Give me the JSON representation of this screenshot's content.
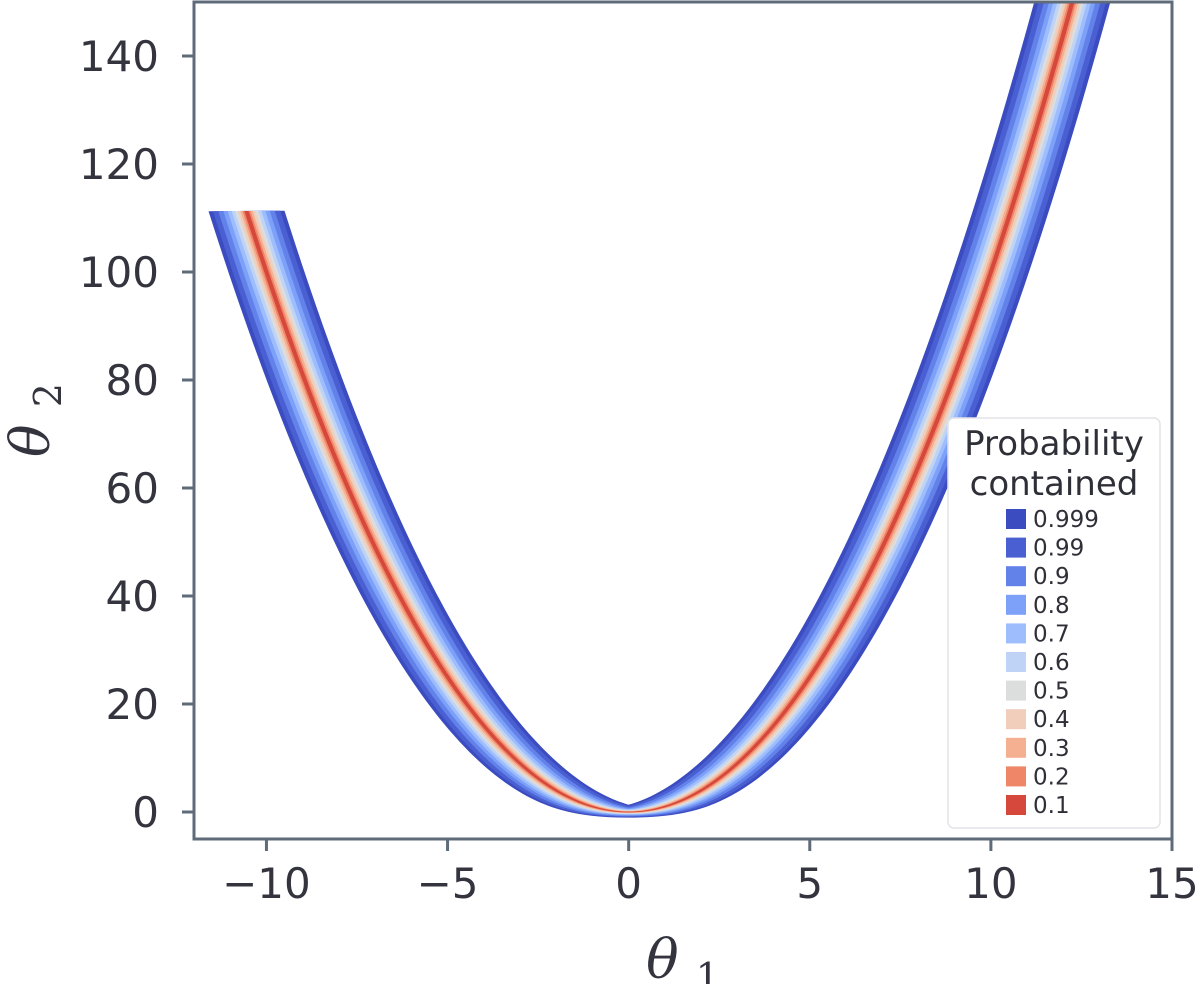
{
  "chart_data": {
    "type": "area",
    "x_axis": {
      "min": -12,
      "max": 15,
      "ticks": [
        -10,
        -5,
        0,
        5,
        10,
        15
      ],
      "tick_labels": [
        "−10",
        "−5",
        "0",
        "5",
        "10",
        "15"
      ],
      "label_main": "θ",
      "label_sub": "1"
    },
    "y_axis": {
      "min": -5,
      "max": 150,
      "ticks": [
        0,
        20,
        40,
        60,
        80,
        100,
        120,
        140
      ],
      "tick_labels": [
        "0",
        "20",
        "40",
        "60",
        "80",
        "100",
        "120",
        "140"
      ],
      "label_main": "θ",
      "label_sub": "2"
    },
    "legend": {
      "title_lines": [
        "Probability",
        "contained"
      ],
      "placement": "right"
    },
    "curve": {
      "formula": "theta2 = theta1^2",
      "x_left_end": -10.55,
      "x_right_end": 12.25
    },
    "series": [
      {
        "name": "0.999",
        "color": "#3b4cc0",
        "half_width": 1.05
      },
      {
        "name": "0.99",
        "color": "#4a5fd1",
        "half_width": 0.93
      },
      {
        "name": "0.9",
        "color": "#6282ea",
        "half_width": 0.78
      },
      {
        "name": "0.8",
        "color": "#7da0f9",
        "half_width": 0.64
      },
      {
        "name": "0.7",
        "color": "#9ebdfd",
        "half_width": 0.52
      },
      {
        "name": "0.6",
        "color": "#bfd3f6",
        "half_width": 0.41
      },
      {
        "name": "0.5",
        "color": "#dcdddd",
        "half_width": 0.32
      },
      {
        "name": "0.4",
        "color": "#f1cdbb",
        "half_width": 0.24
      },
      {
        "name": "0.3",
        "color": "#f5b092",
        "half_width": 0.17
      },
      {
        "name": "0.2",
        "color": "#ee8667",
        "half_width": 0.11
      },
      {
        "name": "0.1",
        "color": "#d6473c",
        "half_width": 0.06
      }
    ],
    "grid": false
  }
}
